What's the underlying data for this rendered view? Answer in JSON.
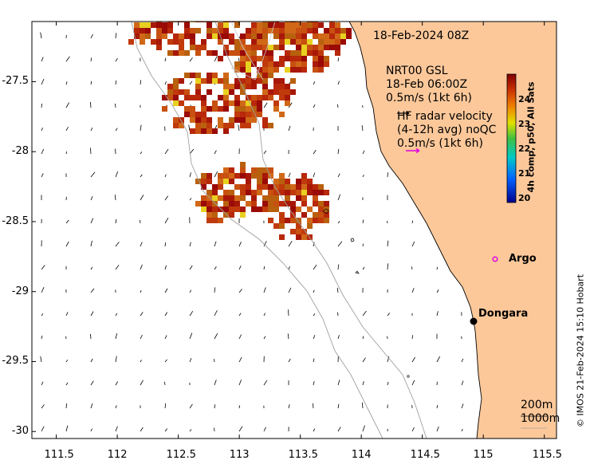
{
  "header": {
    "date": "18-Feb-2024 08Z"
  },
  "legend": {
    "product_line1": "NRT00 GSL",
    "product_line2": "18-Feb 06:00Z",
    "product_scale": "0.5m/s (1kt 6h)",
    "radar_line1": "HF radar velocity",
    "radar_line2": "(4-12h avg) noQC",
    "radar_scale": "0.5m/s (1kt 6h)"
  },
  "colorbar": {
    "title": "4h comp, p50, All Sats",
    "ticks": [
      "24",
      "23",
      "22",
      "21",
      "20"
    ],
    "min": 20,
    "max": 25
  },
  "places": {
    "argo": "Argo",
    "dongara": "Dongara"
  },
  "depth_legend": {
    "d1": "200m",
    "d2": "1000m"
  },
  "credit": "© IMOS 21-Feb-2024 15:10 Hobart",
  "axes": {
    "x_ticks": [
      "111.5",
      "112",
      "112.5",
      "113",
      "113.5",
      "114",
      "114.5",
      "115",
      "115.5"
    ],
    "y_ticks": [
      "-27.5",
      "-28",
      "-28.5",
      "-29",
      "-29.5",
      "-30"
    ],
    "xlim": [
      111.3,
      115.6
    ],
    "ylim": [
      -30.05,
      -27.07
    ]
  },
  "colors": {
    "land": "#fcc89a",
    "coast": "#000000",
    "sst_warm": "#b8280a",
    "sst_hot": "#9a0a06",
    "vector_arrow": "#000000",
    "radar_arrow": "#e000e0"
  }
}
